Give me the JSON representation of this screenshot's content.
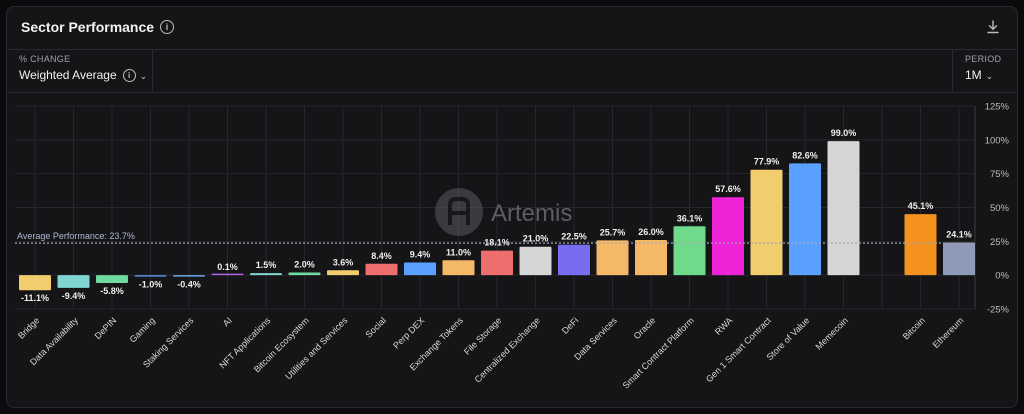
{
  "title": "Sector Performance",
  "icons": {
    "info": "info-icon",
    "download": "download-icon",
    "chevron": "chevron-down-icon"
  },
  "controls": {
    "change_label": "% CHANGE",
    "change_value": "Weighted Average",
    "period_label": "PERIOD",
    "period_value": "1M"
  },
  "watermark": "Artemis",
  "chart_data": {
    "type": "bar",
    "title": "Sector Performance",
    "categories": [
      "Bridge",
      "Data Availability",
      "DePIN",
      "Gaming",
      "Staking Services",
      "AI",
      "NFT Applications",
      "Bitcoin Ecosystem",
      "Utilities and Services",
      "Social",
      "Perp DEX",
      "Exchange Tokens",
      "File Storage",
      "Centralized Exchange",
      "DeFi",
      "Data Services",
      "Oracle",
      "Smart Contract Platform",
      "RWA",
      "Gen 1 Smart Contract",
      "Store of Value",
      "Memecoin",
      "Bitcoin",
      "Ethereum"
    ],
    "values": [
      -11.1,
      -9.4,
      -5.8,
      -1.0,
      -0.4,
      0.1,
      1.5,
      2.0,
      3.6,
      8.4,
      9.4,
      11.0,
      18.1,
      21.0,
      22.5,
      25.7,
      26.0,
      36.1,
      57.6,
      77.9,
      82.6,
      99.0,
      45.1,
      24.1
    ],
    "value_labels": [
      "-11.1%",
      "-9.4%",
      "-5.8%",
      "-1.0%",
      "-0.4%",
      "0.1%",
      "1.5%",
      "2.0%",
      "3.6%",
      "8.4%",
      "9.4%",
      "11.0%",
      "18.1%",
      "21.0%",
      "22.5%",
      "25.7%",
      "26.0%",
      "36.1%",
      "57.6%",
      "77.9%",
      "82.6%",
      "99.0%",
      "45.1%",
      "24.1%"
    ],
    "colors": [
      "#f2cd6e",
      "#7fd6d0",
      "#6fd9a0",
      "#5b8fd9",
      "#6aa8e6",
      "#aa66e0",
      "#7fd6d0",
      "#6fd9a0",
      "#f2cd6e",
      "#ee6e6e",
      "#5aa0ff",
      "#f5b866",
      "#ee6e6e",
      "#d6d6d6",
      "#7a6cf0",
      "#f5b866",
      "#f5b866",
      "#6fd98c",
      "#ee22d6",
      "#f2cd6e",
      "#5aa0ff",
      "#d6d6d6",
      "#f5921e",
      "#8f9ab8"
    ],
    "ylim": [
      -25,
      125
    ],
    "yticks": [
      125,
      100,
      75,
      50,
      25,
      0,
      -25
    ],
    "ytick_labels": [
      "125%",
      "100%",
      "75%",
      "50%",
      "25%",
      "0%",
      "-25%"
    ],
    "average": 23.7,
    "average_label": "Average Performance: 23.7%",
    "grid": true
  }
}
